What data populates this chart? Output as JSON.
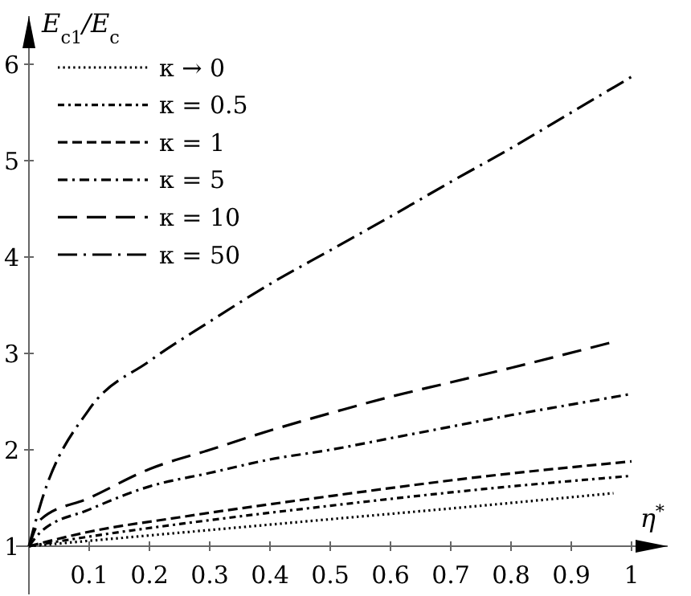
{
  "chart_data": {
    "type": "line",
    "xlabel": "η$^{*}$",
    "ylabel": "E$_{c1}$/E$_{c}$",
    "xlim": [
      0,
      1.06
    ],
    "ylim": [
      0.5,
      6.5
    ],
    "xticks": [
      0.1,
      0.2,
      0.3,
      0.4,
      0.5,
      0.6,
      0.7,
      0.8,
      0.9,
      1
    ],
    "yticks": [
      1,
      2,
      3,
      4,
      5,
      6
    ],
    "legend": "top left",
    "grid": false,
    "series": [
      {
        "name": "κ → 0",
        "color": "#000000",
        "line_style": "dotted",
        "x": [
          0,
          0.25,
          0.5,
          0.75,
          0.97
        ],
        "values": [
          1,
          1.14,
          1.28,
          1.42,
          1.55
        ]
      },
      {
        "name": "κ = 0.5",
        "color": "#000000",
        "line_style": "dashdotdot",
        "x": [
          0,
          0.1,
          0.25,
          0.5,
          0.75,
          1
        ],
        "values": [
          1,
          1.1,
          1.23,
          1.42,
          1.59,
          1.73
        ]
      },
      {
        "name": "κ = 1",
        "color": "#000000",
        "line_style": "dashed",
        "x": [
          0,
          0.1,
          0.25,
          0.5,
          0.75,
          1
        ],
        "values": [
          1,
          1.15,
          1.3,
          1.52,
          1.72,
          1.88
        ]
      },
      {
        "name": "κ = 5",
        "color": "#000000",
        "line_style": "dashdot",
        "x": [
          0,
          0.02,
          0.1,
          0.2,
          0.3,
          0.4,
          0.5,
          0.6,
          0.7,
          0.8,
          0.9,
          1
        ],
        "values": [
          1,
          1.15,
          1.38,
          1.62,
          1.76,
          1.9,
          2.0,
          2.12,
          2.24,
          2.36,
          2.47,
          2.58
        ]
      },
      {
        "name": "κ = 10",
        "color": "#000000",
        "line_style": "longdashed",
        "x": [
          0,
          0.02,
          0.1,
          0.2,
          0.3,
          0.4,
          0.5,
          0.6,
          0.7,
          0.8,
          0.97
        ],
        "values": [
          1,
          1.28,
          1.5,
          1.8,
          2.0,
          2.2,
          2.38,
          2.55,
          2.7,
          2.85,
          3.12
        ]
      },
      {
        "name": "κ = 50",
        "color": "#000000",
        "line_style": "longdashdot",
        "x": [
          0,
          0.02,
          0.1,
          0.2,
          0.3,
          0.4,
          0.5,
          0.6,
          0.7,
          0.8,
          0.9,
          1
        ],
        "values": [
          1,
          1.45,
          2.42,
          2.92,
          3.33,
          3.72,
          4.07,
          4.42,
          4.78,
          5.13,
          5.5,
          5.87
        ]
      }
    ]
  }
}
